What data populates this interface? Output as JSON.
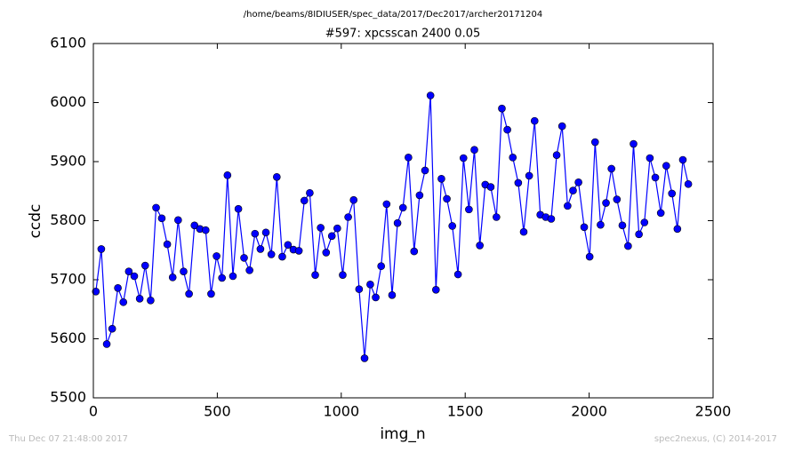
{
  "header": "/home/beams/8IDIUSER/spec_data/2017/Dec2017/archer20171204",
  "chart_data": {
    "type": "line",
    "title": "#597: xpcsscan 2400 0.05",
    "xlabel": "img_n",
    "ylabel": "ccdc",
    "x": [
      10,
      32,
      54,
      76,
      99,
      121,
      143,
      165,
      187,
      209,
      231,
      253,
      276,
      298,
      320,
      342,
      364,
      386,
      408,
      430,
      453,
      475,
      497,
      519,
      541,
      563,
      585,
      608,
      630,
      652,
      674,
      696,
      718,
      740,
      762,
      785,
      807,
      829,
      851,
      873,
      895,
      917,
      939,
      962,
      984,
      1006,
      1028,
      1050,
      1072,
      1094,
      1117,
      1139,
      1161,
      1183,
      1205,
      1227,
      1249,
      1271,
      1294,
      1316,
      1338,
      1360,
      1382,
      1404,
      1426,
      1448,
      1471,
      1493,
      1515,
      1537,
      1559,
      1581,
      1603,
      1626,
      1648,
      1670,
      1692,
      1714,
      1736,
      1758,
      1780,
      1803,
      1825,
      1847,
      1869,
      1891,
      1913,
      1935,
      1957,
      1980,
      2002,
      2024,
      2046,
      2068,
      2090,
      2112,
      2134,
      2157,
      2179,
      2201,
      2223,
      2245,
      2267,
      2289,
      2311,
      2334,
      2356,
      2378,
      2400
    ],
    "series": [
      {
        "name": "ccdc",
        "color": "#0000ff",
        "values": [
          5680,
          5752,
          5591,
          5617,
          5686,
          5662,
          5714,
          5706,
          5668,
          5724,
          5665,
          5822,
          5804,
          5760,
          5704,
          5801,
          5714,
          5676,
          5792,
          5786,
          5784,
          5676,
          5740,
          5703,
          5877,
          5706,
          5820,
          5737,
          5716,
          5778,
          5752,
          5780,
          5743,
          5874,
          5739,
          5759,
          5751,
          5749,
          5834,
          5847,
          5708,
          5788,
          5746,
          5774,
          5787,
          5708,
          5806,
          5835,
          5684,
          5567,
          5692,
          5670,
          5723,
          5828,
          5674,
          5796,
          5822,
          5907,
          5748,
          5843,
          5885,
          6012,
          5683,
          5871,
          5837,
          5791,
          5709,
          5906,
          5819,
          5920,
          5758,
          5861,
          5857,
          5806,
          5990,
          5954,
          5907,
          5864,
          5781,
          5876,
          5969,
          5810,
          5806,
          5803,
          5911,
          5960,
          5825,
          5851,
          5865,
          5789,
          5739,
          5933,
          5793,
          5830,
          5888,
          5836,
          5792,
          5757,
          5930,
          5777,
          5797,
          5906,
          5873,
          5813,
          5893,
          5846,
          5786,
          5903,
          5862
        ]
      }
    ],
    "xlim": [
      0,
      2500
    ],
    "xticks": [
      0,
      500,
      1000,
      1500,
      2000,
      2500
    ],
    "ylim": [
      5500,
      6100
    ],
    "yticks": [
      5500,
      5600,
      5700,
      5800,
      5900,
      6000,
      6100
    ]
  },
  "footer": {
    "left": "Thu Dec 07 21:48:00 2017",
    "right": "spec2nexus, (C) 2014-2017"
  }
}
